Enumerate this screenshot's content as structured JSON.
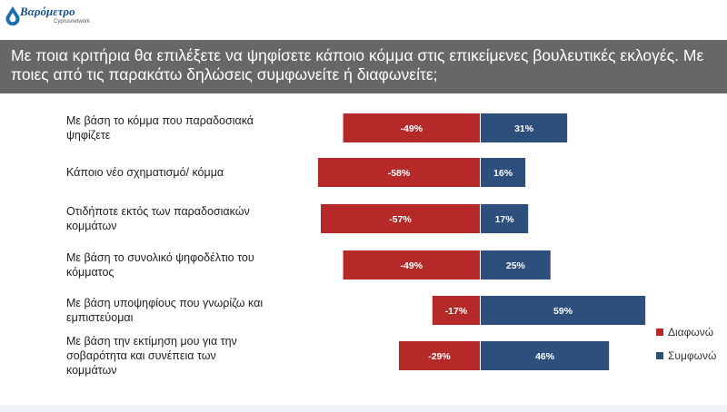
{
  "header": {
    "logo_main": "Βαρόμετρο",
    "logo_sub": "Cyprusnetwork"
  },
  "banner": {
    "title": "Με ποια κριτήρια θα επιλέξετε να ψηφίσετε κάποιο κόμμα στις επικείμενες βουλευτικές εκλογές. Με ποιες από τις παρακάτω δηλώσεις συμφωνείτε ή διαφωνείτε;"
  },
  "colors": {
    "disagree": "#b52a28",
    "agree": "#2c4f7c"
  },
  "chart_data": {
    "type": "bar",
    "orientation": "horizontal-diverging",
    "categories": [
      [
        "Με βάση το κόμμα που παραδοσιακά",
        "ψηφίζετε"
      ],
      [
        "Κάποιο νέο σχηματισμό/ κόμμα"
      ],
      [
        "Οτιδήποτε εκτός των παραδοσιακών",
        "κομμάτων"
      ],
      [
        "Με βάση το συνολικό ψηφοδέλτιο του",
        "κόμματος"
      ],
      [
        "Με βάση υποψηφίους που γνωρίζω και",
        "εμπιστεύομαι"
      ],
      [
        "Με βάση την εκτίμηση μου για την",
        "σοβαρότητα και συνέπεια των",
        "κομμάτων"
      ]
    ],
    "series": [
      {
        "name": "Διαφωνώ",
        "values": [
          -49,
          -58,
          -57,
          -49,
          -17,
          -29
        ],
        "labels": [
          "-49%",
          "-58%",
          "-57%",
          "-49%",
          "-17%",
          "-29%"
        ]
      },
      {
        "name": "Συμφωνώ",
        "values": [
          31,
          16,
          17,
          25,
          59,
          46
        ],
        "labels": [
          "31%",
          "16%",
          "17%",
          "25%",
          "59%",
          "46%"
        ]
      }
    ],
    "legend_position": "bottom-right",
    "grid": false
  }
}
